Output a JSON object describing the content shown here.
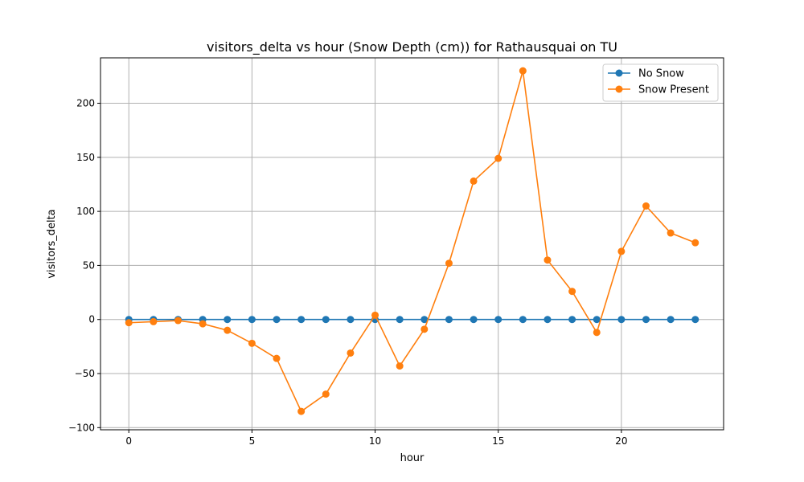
{
  "chart_data": {
    "type": "line",
    "title": "visitors_delta vs hour (Snow Depth (cm)) for Rathausquai on TU",
    "xlabel": "hour",
    "ylabel": "visitors_delta",
    "xlim": [
      -1.15,
      24.15
    ],
    "ylim": [
      -102,
      242
    ],
    "xticks": [
      0,
      5,
      10,
      15,
      20
    ],
    "yticks": [
      -100,
      -50,
      0,
      50,
      100,
      150,
      200
    ],
    "grid": true,
    "legend_position": "upper right",
    "x": [
      0,
      1,
      2,
      3,
      4,
      5,
      6,
      7,
      8,
      9,
      10,
      11,
      12,
      13,
      14,
      15,
      16,
      17,
      18,
      19,
      20,
      21,
      22,
      23
    ],
    "series": [
      {
        "name": "No Snow",
        "color": "#1f77b4",
        "marker": "circle",
        "values": [
          0,
          0,
          0,
          0,
          0,
          0,
          0,
          0,
          0,
          0,
          0,
          0,
          0,
          0,
          0,
          0,
          0,
          0,
          0,
          0,
          0,
          0,
          0,
          0
        ]
      },
      {
        "name": "Snow Present",
        "color": "#ff7f0e",
        "marker": "circle",
        "values": [
          -3,
          -2,
          -1,
          -4,
          -10,
          -22,
          -36,
          -85,
          -69,
          -31,
          4,
          -43,
          -9,
          52,
          128,
          149,
          230,
          55,
          26,
          -12,
          63,
          105,
          80,
          71
        ]
      }
    ]
  }
}
